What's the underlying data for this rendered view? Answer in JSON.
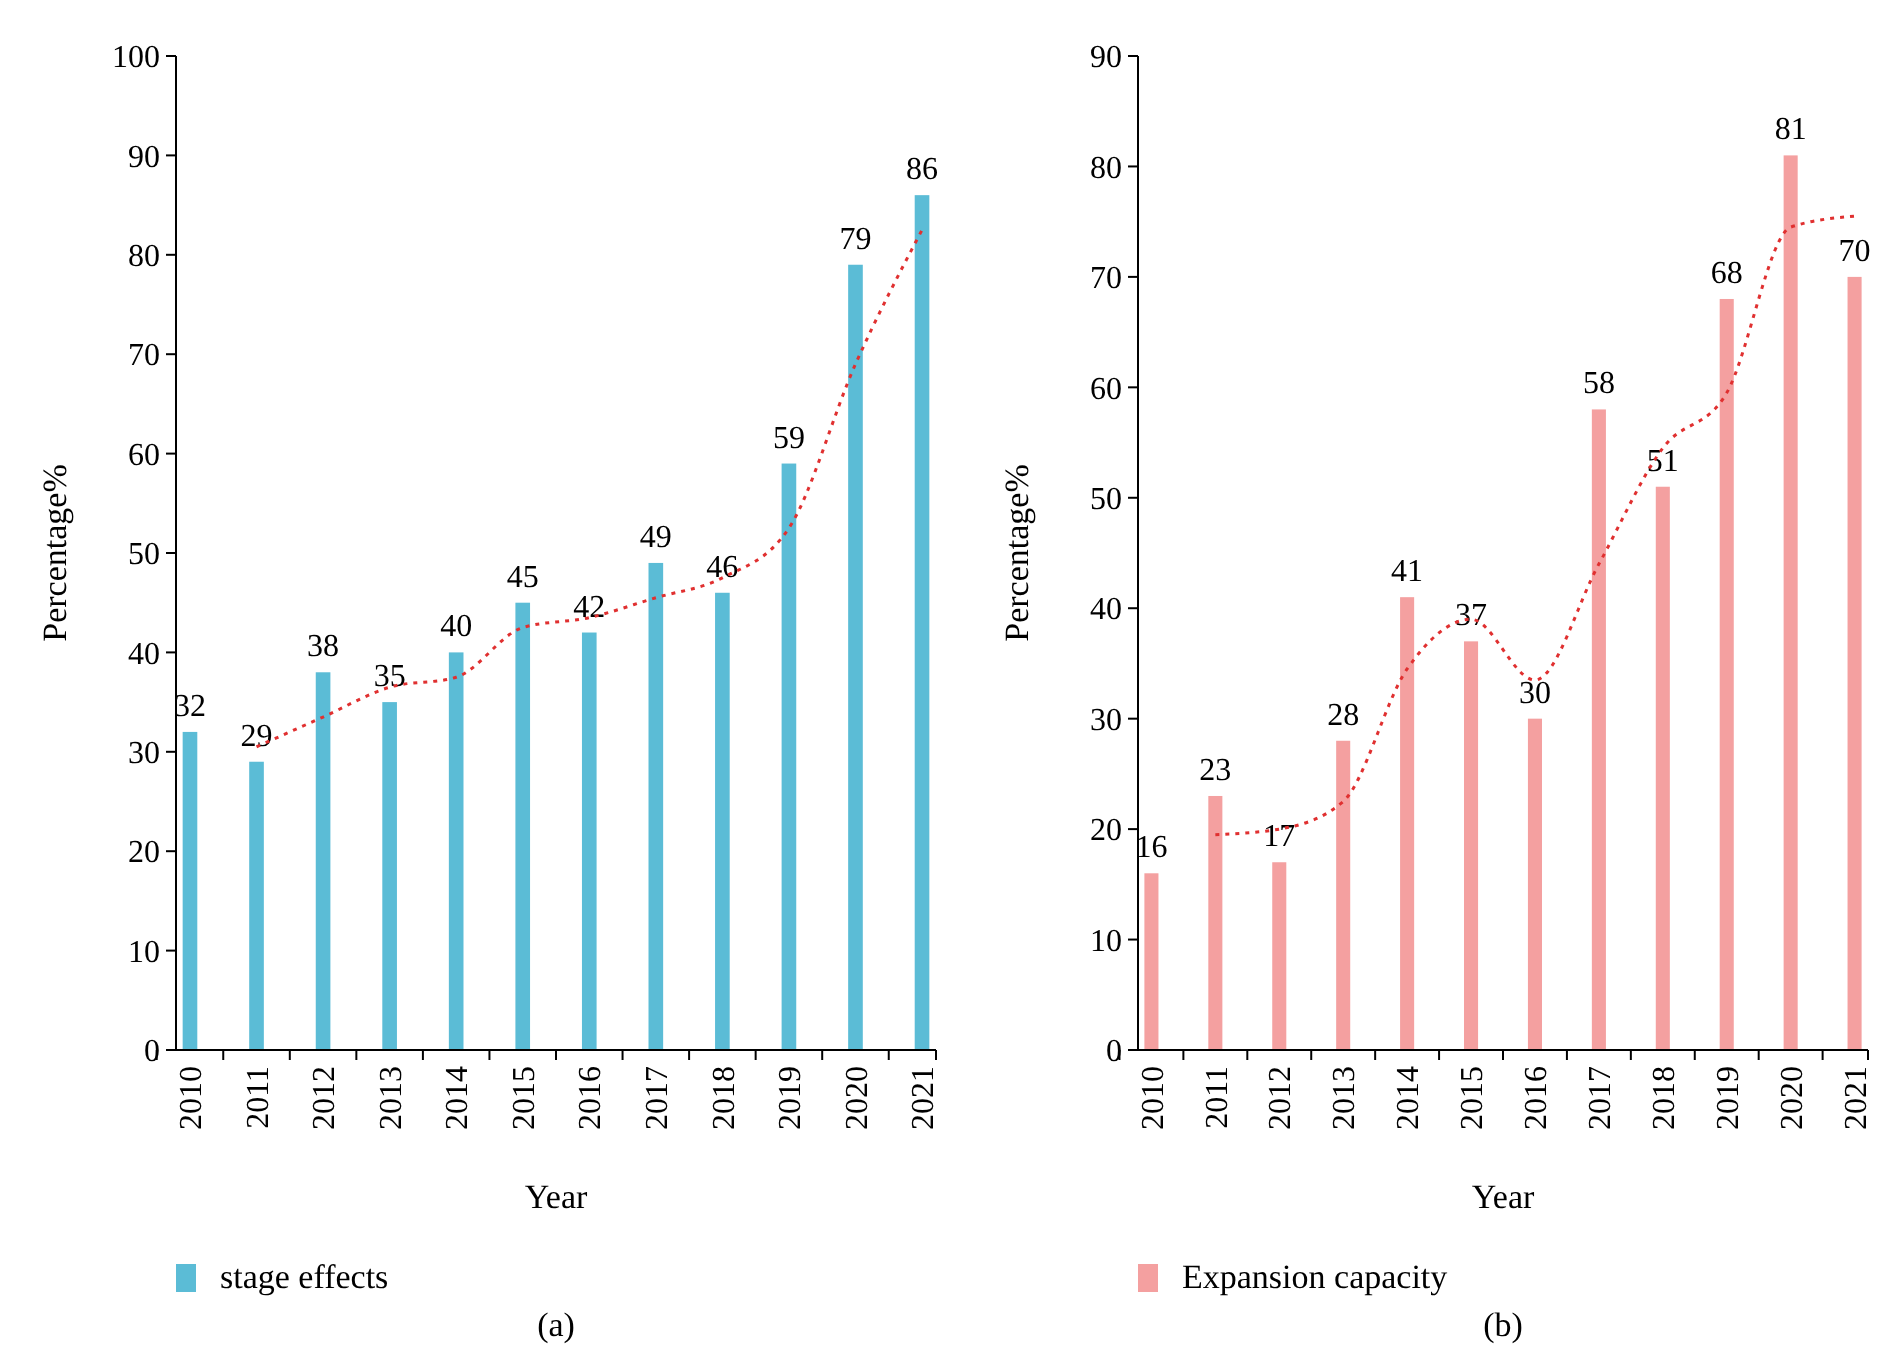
{
  "chart_data": [
    {
      "type": "bar",
      "xlabel": "Year",
      "ylabel": "Percentage%",
      "categories": [
        "2010",
        "2011",
        "2012",
        "2013",
        "2014",
        "2015",
        "2016",
        "2017",
        "2018",
        "2019",
        "2020",
        "2021"
      ],
      "ylim": [
        0,
        100
      ],
      "yticks": [
        0,
        10,
        20,
        30,
        40,
        50,
        60,
        70,
        80,
        90,
        100
      ],
      "grid": false,
      "legend": "bottom",
      "annotations": [
        "(a)"
      ],
      "series": [
        {
          "name": "stage effects",
          "color": "#5bbcd6",
          "values": [
            32,
            29,
            38,
            35,
            40,
            45,
            42,
            49,
            46,
            59,
            79,
            86
          ],
          "value_labels": [
            "32",
            "29",
            "38",
            "35",
            "40",
            "45",
            "42",
            "49",
            "46",
            "59",
            "79",
            "86"
          ]
        },
        {
          "type": "line",
          "color": "#e03030",
          "line_style": "dotted",
          "values": [
            null,
            30.5,
            33.5,
            36.5,
            37.5,
            42.5,
            43.5,
            45.5,
            47.5,
            52.5,
            69,
            82.5
          ]
        }
      ]
    },
    {
      "type": "bar",
      "xlabel": "Year",
      "ylabel": "Percentage%",
      "categories": [
        "2010",
        "2011",
        "2012",
        "2013",
        "2014",
        "2015",
        "2016",
        "2017",
        "2018",
        "2019",
        "2020",
        "2021"
      ],
      "ylim": [
        0,
        90
      ],
      "yticks": [
        0,
        10,
        20,
        30,
        40,
        50,
        60,
        70,
        80,
        90
      ],
      "grid": false,
      "legend": "bottom",
      "annotations": [
        "(b)"
      ],
      "series": [
        {
          "name": "Expansion capacity",
          "color": "#f4a0a0",
          "values": [
            16,
            23,
            17,
            28,
            41,
            37,
            30,
            58,
            51,
            68,
            81,
            70
          ],
          "value_labels": [
            "16",
            "23",
            "17",
            "28",
            "41",
            "37",
            "30",
            "58",
            "51",
            "68",
            "81",
            "70"
          ]
        },
        {
          "type": "line",
          "color": "#e03030",
          "line_style": "dotted",
          "values": [
            null,
            19.5,
            20,
            22.5,
            34.5,
            39,
            33.5,
            44,
            54.5,
            59.5,
            74.5,
            75.5
          ]
        }
      ]
    }
  ]
}
